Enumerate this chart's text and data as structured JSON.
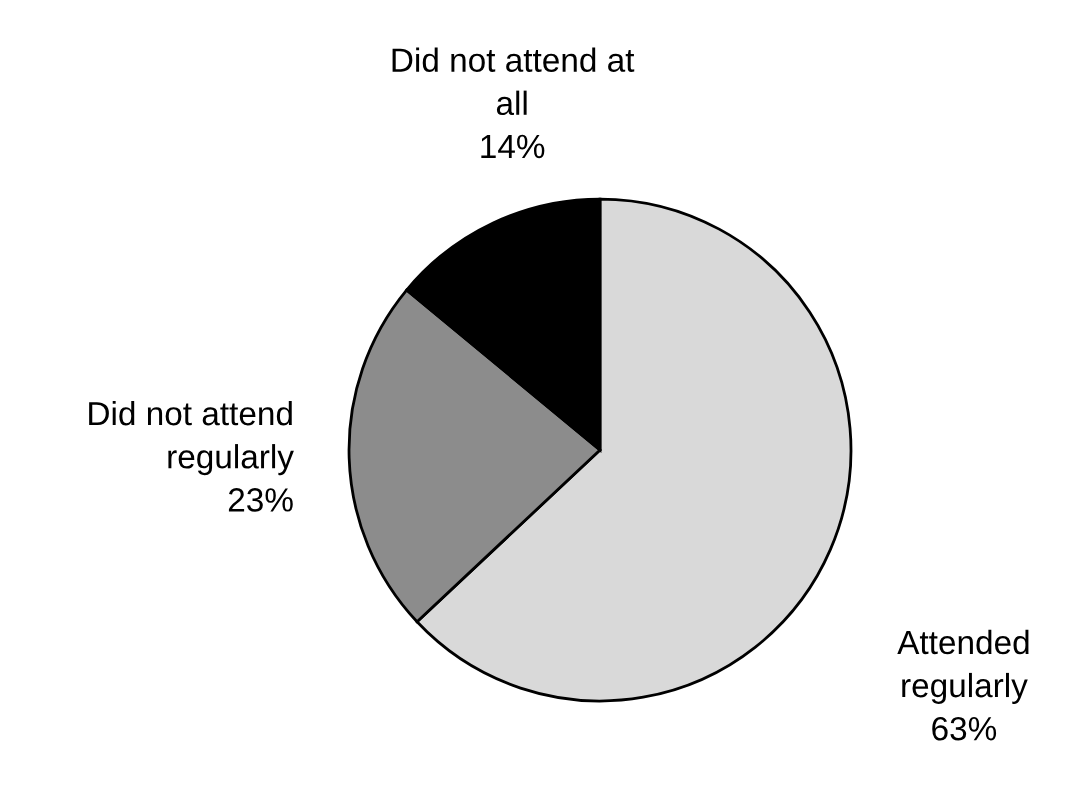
{
  "chart_data": {
    "type": "pie",
    "categories": [
      "Attended regularly",
      "Did not attend regularly",
      "Did not attend at all"
    ],
    "values": [
      63,
      23,
      14
    ],
    "value_labels": [
      "63%",
      "23%",
      "14%"
    ],
    "colors": [
      "#d9d9d9",
      "#8c8c8c",
      "#000000"
    ]
  }
}
